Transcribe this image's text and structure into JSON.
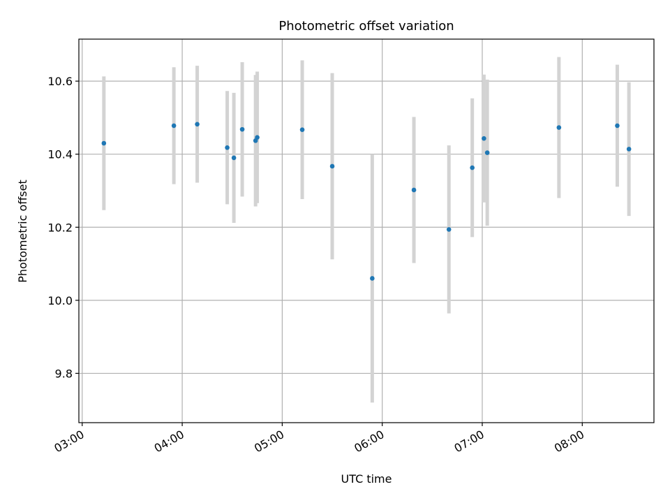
{
  "chart_data": {
    "type": "scatter",
    "title": "Photometric offset variation",
    "xlabel": "UTC time",
    "ylabel": "Photometric offset",
    "xlim": [
      "02:58",
      "08:43"
    ],
    "ylim": [
      9.665,
      10.715
    ],
    "x_ticks": [
      "03:00",
      "04:00",
      "05:00",
      "06:00",
      "07:00",
      "08:00"
    ],
    "y_ticks": [
      9.8,
      10.0,
      10.2,
      10.4,
      10.6
    ],
    "y_tick_labels": [
      "9.8",
      "10.0",
      "10.2",
      "10.4",
      "10.6"
    ],
    "grid": true,
    "series": [
      {
        "marker_color": "#1f77b4",
        "errorbar_color": "#d3d3d3",
        "points": [
          {
            "x": "03:13",
            "y": 10.43,
            "yerr": 0.183
          },
          {
            "x": "03:55",
            "y": 10.478,
            "yerr": 0.16
          },
          {
            "x": "04:09",
            "y": 10.482,
            "yerr": 0.16
          },
          {
            "x": "04:27",
            "y": 10.418,
            "yerr": 0.155
          },
          {
            "x": "04:31",
            "y": 10.39,
            "yerr": 0.178
          },
          {
            "x": "04:36",
            "y": 10.468,
            "yerr": 0.184
          },
          {
            "x": "04:44",
            "y": 10.437,
            "yerr": 0.18
          },
          {
            "x": "04:45",
            "y": 10.446,
            "yerr": 0.18
          },
          {
            "x": "05:12",
            "y": 10.467,
            "yerr": 0.19
          },
          {
            "x": "05:30",
            "y": 10.367,
            "yerr": 0.255
          },
          {
            "x": "05:54",
            "y": 10.06,
            "yerr": 0.34
          },
          {
            "x": "06:19",
            "y": 10.302,
            "yerr": 0.2
          },
          {
            "x": "06:40",
            "y": 10.194,
            "yerr": 0.23
          },
          {
            "x": "06:54",
            "y": 10.363,
            "yerr": 0.19
          },
          {
            "x": "07:01",
            "y": 10.443,
            "yerr": 0.175
          },
          {
            "x": "07:03",
            "y": 10.404,
            "yerr": 0.2
          },
          {
            "x": "07:46",
            "y": 10.473,
            "yerr": 0.193
          },
          {
            "x": "08:21",
            "y": 10.478,
            "yerr": 0.167
          },
          {
            "x": "08:28",
            "y": 10.414,
            "yerr": 0.183
          }
        ]
      }
    ]
  }
}
